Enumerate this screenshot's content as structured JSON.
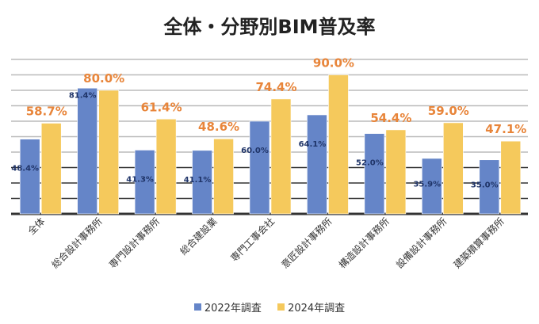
{
  "chart_data": {
    "type": "bar",
    "title": "全体・分野別BIM普及率",
    "categories": [
      "全体",
      "総合設計事務所",
      "専門設計事務所",
      "総合建設業",
      "専門工事会社",
      "意匠設計事務所",
      "構造設計事務所",
      "設備設計事務所",
      "建築積算事務所"
    ],
    "series": [
      {
        "name": "2022年調査",
        "values": [
          48.4,
          81.4,
          41.3,
          41.1,
          60.0,
          64.1,
          52.0,
          35.9,
          35.0
        ],
        "labels": [
          "48.4%",
          "81.4%",
          "41.3%",
          "41.1%",
          "60.0%",
          "64.1%",
          "52.0%",
          "35.9%",
          "35.0%"
        ],
        "color": "#6585c8",
        "label_color": "#1f3468"
      },
      {
        "name": "2024年調査",
        "values": [
          58.7,
          80.0,
          61.4,
          48.6,
          74.4,
          90.0,
          54.4,
          59.0,
          47.1
        ],
        "labels": [
          "58.7%",
          "80.0%",
          "61.4%",
          "48.6%",
          "74.4%",
          "90.0%",
          "54.4%",
          "59.0%",
          "47.1%"
        ],
        "color": "#f5c95c",
        "label_color": "#e8853a"
      }
    ],
    "ylim": [
      0,
      100
    ],
    "grid": true,
    "y_axis_labels": false,
    "legend": "bottom"
  }
}
